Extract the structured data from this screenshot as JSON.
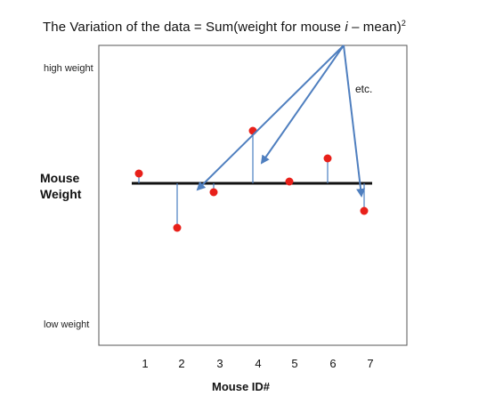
{
  "title": {
    "prefix": "The Variation of the data = Sum(weight for mouse ",
    "italic": "i",
    "middle": " – mean)",
    "sup": "2"
  },
  "labels": {
    "high_weight": "high weight",
    "low_weight": "low weight",
    "y_axis_line1": "Mouse",
    "y_axis_line2": "Weight",
    "x_axis": "Mouse ID#",
    "etc": "etc."
  },
  "mouse_ids": [
    "1",
    "2",
    "3",
    "4",
    "5",
    "6",
    "7"
  ],
  "colors": {
    "point": "#e8201a",
    "stem": "#4a7fc1",
    "arrow": "#4f7fbf",
    "mean_line": "#111111",
    "frame": "#555555"
  }
}
